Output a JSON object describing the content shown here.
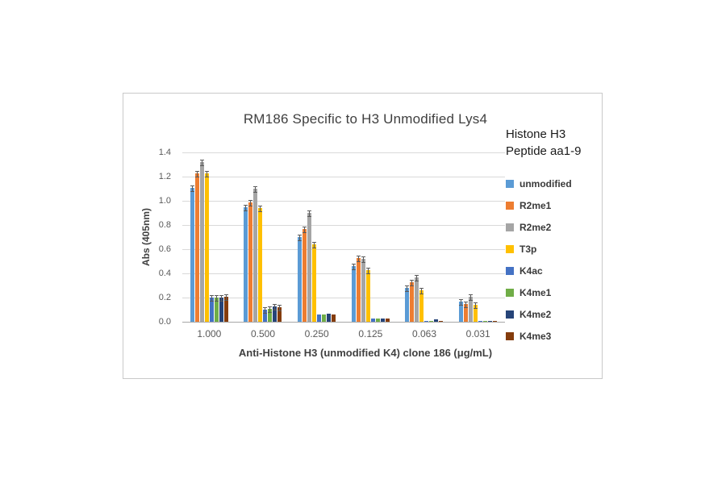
{
  "chart_data": {
    "type": "bar",
    "title": "RM186 Specific to H3 Unmodified Lys4",
    "xlabel": "Anti-Histone H3 (unmodified K4) clone 186 (μg/mL)",
    "ylabel": "Abs (405nm)",
    "ylim": [
      0,
      1.4
    ],
    "ytick_step": 0.2,
    "yticks": [
      "0.0",
      "0.2",
      "0.4",
      "0.6",
      "0.8",
      "1.0",
      "1.2",
      "1.4"
    ],
    "grid": true,
    "legend_position": "right",
    "legend_title": "Histone H3\nPeptide aa1-9",
    "error_bars": true,
    "error_approx": 0.02,
    "categories": [
      "1.000",
      "0.500",
      "0.250",
      "0.125",
      "0.063",
      "0.031"
    ],
    "series": [
      {
        "name": "unmodified",
        "color": "#5B9BD5",
        "values": [
          1.11,
          0.95,
          0.7,
          0.46,
          0.28,
          0.17
        ]
      },
      {
        "name": "R2me1",
        "color": "#ED7D31",
        "values": [
          1.23,
          0.99,
          0.77,
          0.53,
          0.33,
          0.15
        ]
      },
      {
        "name": "R2me2",
        "color": "#A5A5A5",
        "values": [
          1.32,
          1.1,
          0.9,
          0.52,
          0.37,
          0.21
        ]
      },
      {
        "name": "T3p",
        "color": "#FFC000",
        "values": [
          1.23,
          0.94,
          0.64,
          0.43,
          0.26,
          0.14
        ]
      },
      {
        "name": "K4ac",
        "color": "#4472C4",
        "values": [
          0.2,
          0.1,
          0.06,
          0.03,
          0.01,
          0.01
        ]
      },
      {
        "name": "K4me1",
        "color": "#70AD47",
        "values": [
          0.2,
          0.11,
          0.06,
          0.03,
          0.01,
          0.005
        ]
      },
      {
        "name": "K4me2",
        "color": "#264478",
        "values": [
          0.2,
          0.13,
          0.07,
          0.03,
          0.02,
          0.01
        ]
      },
      {
        "name": "K4me3",
        "color": "#843C0C",
        "values": [
          0.21,
          0.12,
          0.06,
          0.03,
          0.01,
          0.01
        ]
      }
    ]
  }
}
